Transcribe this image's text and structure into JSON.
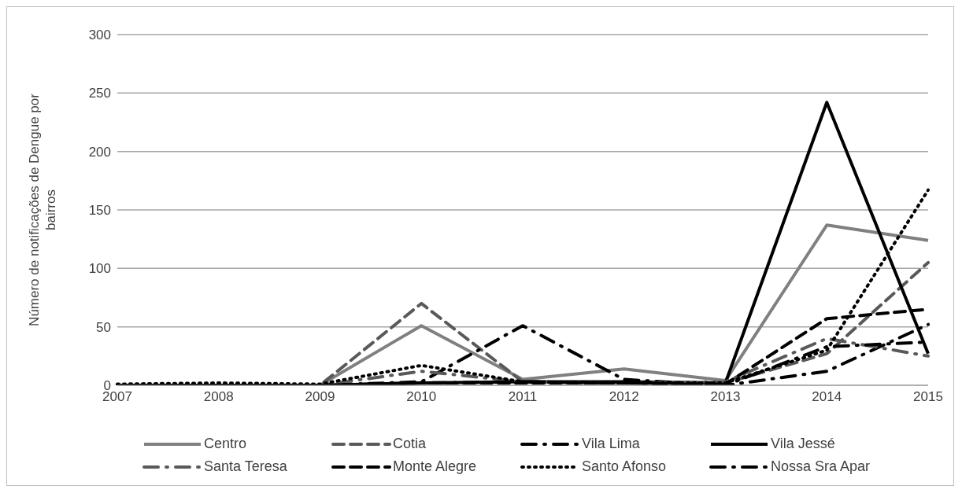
{
  "chart_data": {
    "type": "line",
    "ylabel": "Número de notificações de Dengue por bairros",
    "categories": [
      "2007",
      "2008",
      "2009",
      "2010",
      "2011",
      "2012",
      "2013",
      "2014",
      "2015"
    ],
    "ylim": [
      0,
      300
    ],
    "yticks": [
      0,
      50,
      100,
      150,
      200,
      250,
      300
    ],
    "grid": "y",
    "legend": "bottom",
    "marker": "none",
    "series": [
      {
        "name": "Centro",
        "color": "#808080",
        "line_style": "solid",
        "values": [
          0,
          0,
          0,
          51,
          5,
          14,
          4,
          137,
          124
        ]
      },
      {
        "name": "Cotia",
        "color": "#595959",
        "line_style": "dashed",
        "values": [
          0,
          0,
          0,
          70,
          3,
          2,
          2,
          27,
          105
        ]
      },
      {
        "name": "Vila Lima",
        "color": "#000000",
        "line_style": "dashdot",
        "values": [
          0,
          0,
          0,
          3,
          51,
          5,
          0,
          12,
          52
        ]
      },
      {
        "name": "Vila Jessé",
        "color": "#000000",
        "line_style": "solid",
        "values": [
          0,
          0,
          0,
          2,
          3,
          3,
          2,
          242,
          27
        ]
      },
      {
        "name": "Santa Teresa",
        "color": "#595959",
        "line_style": "dashdot",
        "values": [
          0,
          0,
          0,
          12,
          3,
          2,
          3,
          40,
          25
        ]
      },
      {
        "name": "Monte Alegre",
        "color": "#000000",
        "line_style": "dashed",
        "values": [
          0,
          0,
          0,
          2,
          2,
          2,
          1,
          57,
          65
        ]
      },
      {
        "name": "Santo Afonso",
        "color": "#000000",
        "line_style": "dotted",
        "values": [
          1,
          2,
          1,
          17,
          3,
          2,
          2,
          30,
          167
        ]
      },
      {
        "name": "Nossa Sra Apar",
        "color": "#000000",
        "line_style": "dashdot",
        "values": [
          0,
          0,
          0,
          2,
          3,
          2,
          0,
          33,
          37
        ]
      }
    ]
  }
}
